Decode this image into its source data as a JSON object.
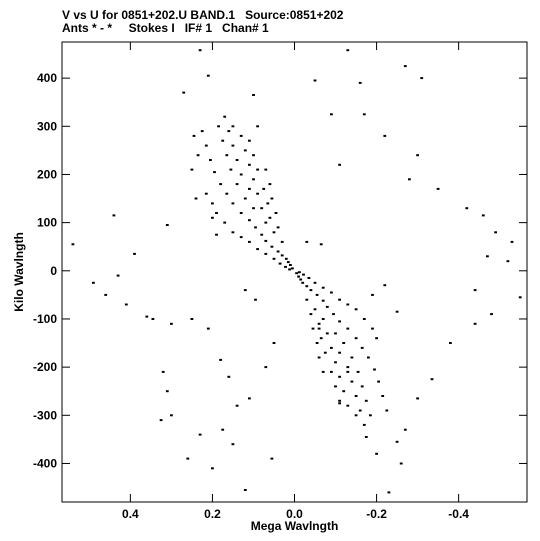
{
  "title_line1": "V vs U for 0851+202.U BAND.1   Source:0851+202",
  "title_line2": "Ants * - *     Stokes I   IF# 1   Chan# 1",
  "chart_data": {
    "type": "scatter",
    "xlabel": "Mega Wavlngth",
    "ylabel": "Kilo Wavlngth",
    "x_reversed": true,
    "xlim": [
      0.5666,
      -0.5666
    ],
    "ylim": [
      -480,
      475
    ],
    "x_ticks": [
      0.4,
      0.2,
      0.0,
      -0.2,
      -0.4
    ],
    "x_tick_labels": [
      "0.4",
      "0.2",
      "0.0",
      "-0.2",
      "-0.4"
    ],
    "y_ticks": [
      400,
      300,
      200,
      100,
      0,
      -100,
      -200,
      -300,
      -400
    ],
    "y_tick_labels": [
      "400",
      "300",
      "200",
      "100",
      "0",
      "-100",
      "-200",
      "-300",
      "-400"
    ],
    "marker_color": "#000000",
    "series": [
      {
        "points": [
          [
            0.54,
            55
          ],
          [
            0.44,
            115
          ],
          [
            0.31,
            95
          ],
          [
            0.39,
            35
          ],
          [
            0.43,
            -10
          ],
          [
            0.49,
            -25
          ],
          [
            0.46,
            -50
          ],
          [
            0.41,
            -70
          ],
          [
            0.345,
            -100
          ],
          [
            0.3,
            -110
          ],
          [
            0.36,
            -95
          ],
          [
            0.23,
            458
          ],
          [
            0.21,
            405
          ],
          [
            0.27,
            370
          ],
          [
            0.245,
            280
          ],
          [
            0.235,
            240
          ],
          [
            0.25,
            210
          ],
          [
            0.24,
            150
          ],
          [
            0.215,
            160
          ],
          [
            0.2,
            110
          ],
          [
            0.19,
            75
          ],
          [
            0.1,
            365
          ],
          [
            0.09,
            300
          ],
          [
            0.32,
            -210
          ],
          [
            0.31,
            -250
          ],
          [
            0.3,
            -300
          ],
          [
            0.325,
            -310
          ],
          [
            0.26,
            -390
          ],
          [
            0.2,
            -410
          ],
          [
            0.23,
            -340
          ],
          [
            0.175,
            -330
          ],
          [
            0.15,
            -360
          ],
          [
            0.12,
            -455
          ],
          [
            0.055,
            -390
          ],
          [
            0.25,
            -100
          ],
          [
            0.21,
            -120
          ],
          [
            0.18,
            -185
          ],
          [
            0.16,
            -220
          ],
          [
            0.14,
            -280
          ],
          [
            0.11,
            -265
          ],
          [
            0.07,
            -200
          ],
          [
            0.05,
            -150
          ],
          [
            -0.13,
            458
          ],
          [
            -0.05,
            395
          ],
          [
            -0.09,
            325
          ],
          [
            -0.11,
            220
          ],
          [
            -0.16,
            390
          ],
          [
            -0.27,
            425
          ],
          [
            -0.31,
            400
          ],
          [
            -0.17,
            325
          ],
          [
            -0.22,
            280
          ],
          [
            -0.3,
            240
          ],
          [
            -0.28,
            190
          ],
          [
            -0.35,
            170
          ],
          [
            -0.42,
            130
          ],
          [
            -0.46,
            115
          ],
          [
            -0.49,
            80
          ],
          [
            -0.53,
            60
          ],
          [
            -0.47,
            30
          ],
          [
            -0.52,
            20
          ],
          [
            -0.44,
            -40
          ],
          [
            -0.55,
            -55
          ],
          [
            -0.06,
            -120
          ],
          [
            -0.13,
            -210
          ],
          [
            -0.11,
            -275
          ],
          [
            -0.175,
            -345
          ],
          [
            -0.2,
            -380
          ],
          [
            -0.23,
            -460
          ],
          [
            -0.3,
            -265
          ],
          [
            -0.27,
            -330
          ],
          [
            -0.25,
            -355
          ],
          [
            -0.26,
            -400
          ],
          [
            -0.335,
            -225
          ],
          [
            -0.38,
            -150
          ],
          [
            -0.44,
            -110
          ],
          [
            -0.48,
            -90
          ],
          [
            -0.22,
            -30
          ],
          [
            -0.25,
            -85
          ],
          [
            -0.19,
            -50
          ],
          [
            -0.065,
            55
          ],
          [
            -0.03,
            60
          ],
          [
            0.12,
            -40
          ],
          [
            0.095,
            -60
          ],
          [
            0.005,
            5
          ],
          [
            0.01,
            12
          ],
          [
            0.015,
            18
          ],
          [
            0.02,
            25
          ],
          [
            0.03,
            32
          ],
          [
            0.04,
            40
          ],
          [
            0.055,
            50
          ],
          [
            0.07,
            62
          ],
          [
            0.08,
            75
          ],
          [
            0.095,
            90
          ],
          [
            0.11,
            105
          ],
          [
            0.13,
            120
          ],
          [
            0.15,
            140
          ],
          [
            0.165,
            160
          ],
          [
            0.18,
            180
          ],
          [
            0.195,
            205
          ],
          [
            0.205,
            230
          ],
          [
            0.215,
            260
          ],
          [
            0.225,
            290
          ],
          [
            0.07,
            100
          ],
          [
            0.08,
            130
          ],
          [
            0.09,
            160
          ],
          [
            0.1,
            190
          ],
          [
            0.11,
            220
          ],
          [
            0.12,
            250
          ],
          [
            0.13,
            280
          ],
          [
            0.15,
            300
          ],
          [
            0.17,
            320
          ],
          [
            0.05,
            80
          ],
          [
            0.06,
            110
          ],
          [
            0.065,
            140
          ],
          [
            0.075,
            170
          ],
          [
            0.03,
            60
          ],
          [
            0.04,
            90
          ],
          [
            0.045,
            120
          ],
          [
            0.055,
            150
          ],
          [
            0.06,
            180
          ],
          [
            0.07,
            210
          ],
          [
            0.14,
            180
          ],
          [
            0.155,
            210
          ],
          [
            0.165,
            240
          ],
          [
            0.175,
            270
          ],
          [
            0.185,
            300
          ],
          [
            0.12,
            150
          ],
          [
            0.13,
            200
          ],
          [
            0.14,
            230
          ],
          [
            0.15,
            260
          ],
          [
            0.16,
            290
          ],
          [
            0.1,
            130
          ],
          [
            0.11,
            170
          ],
          [
            0.09,
            210
          ],
          [
            0.1,
            240
          ],
          [
            0.11,
            270
          ],
          [
            0.2,
            140
          ],
          [
            0.19,
            120
          ],
          [
            0.17,
            100
          ],
          [
            0.15,
            80
          ],
          [
            0.13,
            70
          ],
          [
            0.11,
            60
          ],
          [
            0.09,
            45
          ],
          [
            0.07,
            35
          ],
          [
            0.05,
            25
          ],
          [
            0.035,
            15
          ],
          [
            0.022,
            8
          ],
          [
            0.012,
            3
          ],
          [
            -0.005,
            -5
          ],
          [
            -0.01,
            -12
          ],
          [
            -0.015,
            -18
          ],
          [
            -0.02,
            -25
          ],
          [
            -0.03,
            -32
          ],
          [
            -0.04,
            -40
          ],
          [
            -0.055,
            -50
          ],
          [
            -0.07,
            -62
          ],
          [
            -0.08,
            -75
          ],
          [
            -0.095,
            -90
          ],
          [
            -0.11,
            -105
          ],
          [
            -0.13,
            -120
          ],
          [
            -0.15,
            -140
          ],
          [
            -0.165,
            -160
          ],
          [
            -0.18,
            -180
          ],
          [
            -0.195,
            -205
          ],
          [
            -0.205,
            -230
          ],
          [
            -0.215,
            -260
          ],
          [
            -0.225,
            -290
          ],
          [
            -0.07,
            -100
          ],
          [
            -0.08,
            -130
          ],
          [
            -0.09,
            -160
          ],
          [
            -0.1,
            -190
          ],
          [
            -0.11,
            -220
          ],
          [
            -0.12,
            -250
          ],
          [
            -0.13,
            -280
          ],
          [
            -0.15,
            -300
          ],
          [
            -0.17,
            -320
          ],
          [
            -0.05,
            -80
          ],
          [
            -0.06,
            -110
          ],
          [
            -0.065,
            -140
          ],
          [
            -0.075,
            -170
          ],
          [
            -0.03,
            -60
          ],
          [
            -0.04,
            -90
          ],
          [
            -0.045,
            -120
          ],
          [
            -0.055,
            -150
          ],
          [
            -0.06,
            -180
          ],
          [
            -0.07,
            -210
          ],
          [
            -0.14,
            -180
          ],
          [
            -0.155,
            -210
          ],
          [
            -0.165,
            -240
          ],
          [
            -0.175,
            -270
          ],
          [
            -0.185,
            -300
          ],
          [
            -0.12,
            -150
          ],
          [
            -0.13,
            -200
          ],
          [
            -0.14,
            -230
          ],
          [
            -0.15,
            -260
          ],
          [
            -0.16,
            -290
          ],
          [
            -0.1,
            -130
          ],
          [
            -0.11,
            -170
          ],
          [
            -0.09,
            -210
          ],
          [
            -0.1,
            -240
          ],
          [
            -0.11,
            -270
          ],
          [
            -0.2,
            -140
          ],
          [
            -0.19,
            -120
          ],
          [
            -0.17,
            -100
          ],
          [
            -0.15,
            -80
          ],
          [
            -0.13,
            -70
          ],
          [
            -0.11,
            -60
          ],
          [
            -0.09,
            -45
          ],
          [
            -0.07,
            -35
          ],
          [
            -0.05,
            -25
          ],
          [
            -0.035,
            -15
          ],
          [
            -0.022,
            -8
          ],
          [
            -0.012,
            -3
          ]
        ]
      }
    ]
  }
}
